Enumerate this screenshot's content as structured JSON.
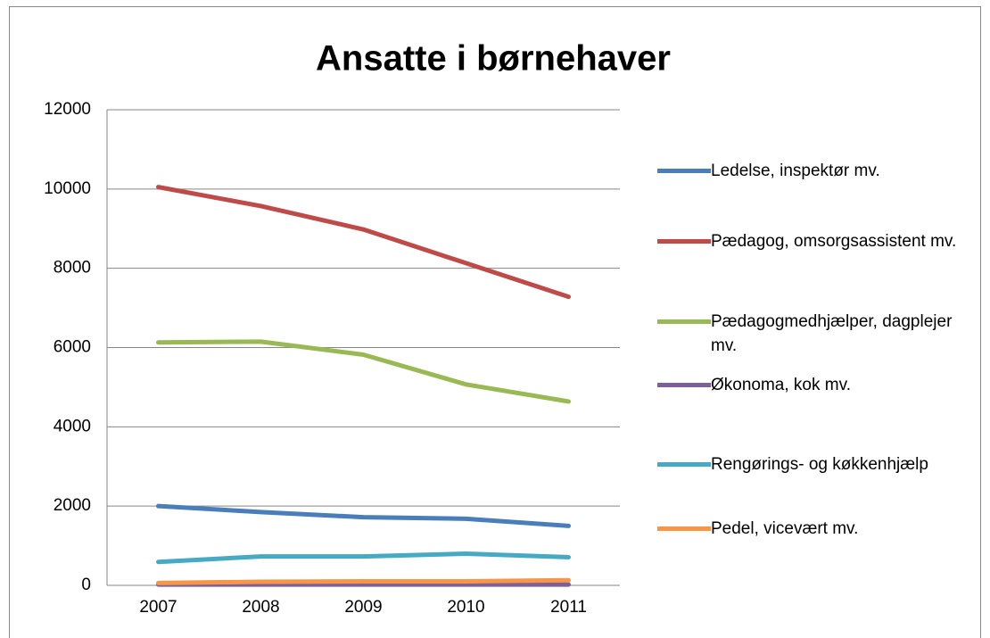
{
  "chart_data": {
    "type": "line",
    "title": "Ansatte i børnehaver",
    "categories": [
      "2007",
      "2008",
      "2009",
      "2010",
      "2011"
    ],
    "series": [
      {
        "name": "Ledelse, inspektør mv.",
        "color": "#4a7ebb",
        "values": [
          2000,
          1850,
          1720,
          1680,
          1500
        ]
      },
      {
        "name": "Pædagog, omsorgsassistent mv.",
        "color": "#be4b48",
        "values": [
          10050,
          9570,
          8980,
          8130,
          7280
        ]
      },
      {
        "name": "Pædagogmedhjælper, dagplejer mv.",
        "color": "#98b954",
        "values": [
          6130,
          6150,
          5820,
          5070,
          4640
        ]
      },
      {
        "name": "Økonoma, kok mv.",
        "color": "#7d5fa0",
        "values": [
          20,
          20,
          20,
          20,
          20
        ]
      },
      {
        "name": "Rengørings- og køkkenhjælp",
        "color": "#46aac5",
        "values": [
          590,
          730,
          730,
          800,
          710
        ]
      },
      {
        "name": "Pedel, vicevært mv.",
        "color": "#f79646",
        "values": [
          60,
          90,
          100,
          100,
          130
        ]
      }
    ],
    "ylim": [
      0,
      12000
    ],
    "yticks": [
      0,
      2000,
      4000,
      6000,
      8000,
      10000,
      12000
    ],
    "grid": true,
    "legend": "right"
  }
}
